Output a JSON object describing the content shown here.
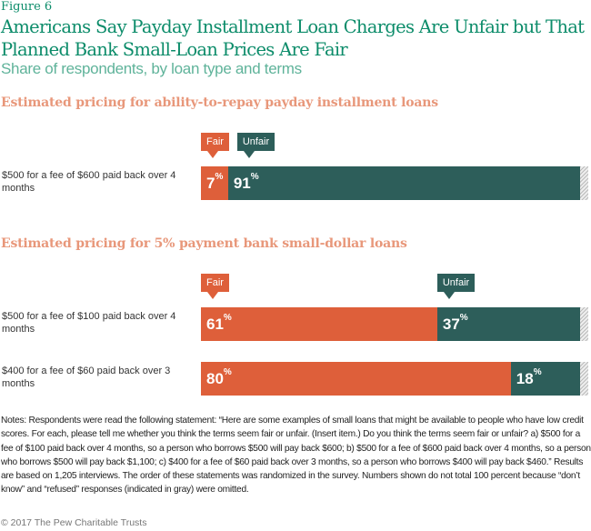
{
  "figure_label": "Figure 6",
  "title": "Americans Say Payday Installment Loan Charges Are Unfair but That Planned Bank Small-Loan Prices Are Fair",
  "subtitle": "Share of respondents, by loan type and terms",
  "colors": {
    "fair": "#de5f3a",
    "unfair": "#2d5e5a",
    "other": "#cccccc",
    "title": "#0c8c6a",
    "section": "#e8977a"
  },
  "chart_data": {
    "type": "bar",
    "orientation": "horizontal-stacked",
    "legend": [
      "Fair",
      "Unfair"
    ],
    "unit": "%",
    "sections": [
      {
        "heading": "Estimated pricing for ability-to-repay payday installment loans",
        "rows": [
          {
            "label": "$500 for a fee of $600 paid back over 4 months",
            "fair": 7,
            "unfair": 91
          }
        ]
      },
      {
        "heading": "Estimated pricing for 5% payment bank small-dollar loans",
        "rows": [
          {
            "label": "$500 for a fee of $100 paid back over 4 months",
            "fair": 61,
            "unfair": 37
          },
          {
            "label": "$400 for a fee of $60 paid back over 3 months",
            "fair": 80,
            "unfair": 18
          }
        ]
      }
    ]
  },
  "notes": "Notes: Respondents were read the following statement: “Here are some examples of small loans that might be available to people who have low credit scores. For each, please tell me whether you think the terms seem fair or unfair. (Insert item.) Do you think the terms seem fair or unfair? a) $500 for a fee of $100 paid back over 4 months, so a person who borrows $500 will pay back $600; b) $500 for a fee of $600 paid back over 4 months, so a person who borrows $500 will pay back $1,100; c) $400 for a fee of $60 paid back over 3 months, so a person who borrows $400 will pay back $460.” Results are based on 1,205 interviews. The order of these statements was randomized in the survey. Numbers shown do not total 100 percent because “don’t know” and “refused” responses (indicated in gray) were omitted.",
  "copyright": "© 2017 The Pew Charitable Trusts"
}
